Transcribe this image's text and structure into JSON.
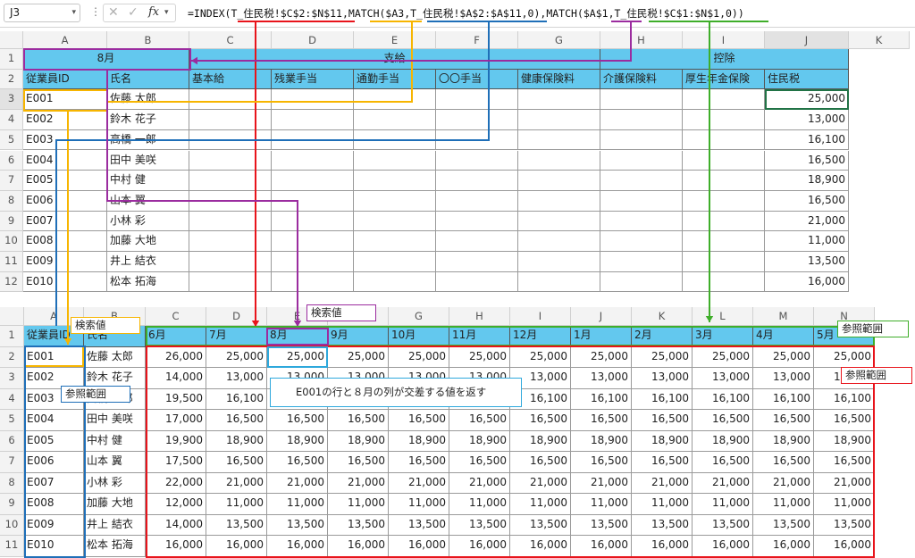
{
  "formula_bar": {
    "cell_ref": "J3",
    "formula": "=INDEX(T_住民税!$C$2:$N$11,MATCH($A3,T_住民税!$A$2:$A$11,0),MATCH($A$1,T_住民税!$C$1:$N$1,0))"
  },
  "top_sheet": {
    "columns": [
      "A",
      "B",
      "C",
      "D",
      "E",
      "F",
      "G",
      "H",
      "I",
      "J",
      "K"
    ],
    "row_numbers": [
      "1",
      "2",
      "3",
      "4",
      "5",
      "6",
      "7",
      "8",
      "9",
      "10",
      "11",
      "12"
    ],
    "month": "8月",
    "group_salary": "支給",
    "group_deduction": "控除",
    "headers": [
      "従業員ID",
      "氏名",
      "基本給",
      "残業手当",
      "通勤手当",
      "〇〇手当",
      "健康保険料",
      "介護保険料",
      "厚生年金保険",
      "住民税"
    ],
    "rows": [
      {
        "id": "E001",
        "name": "佐藤 太郎",
        "tax": "25,000"
      },
      {
        "id": "E002",
        "name": "鈴木 花子",
        "tax": "13,000"
      },
      {
        "id": "E003",
        "name": "高橋 一郎",
        "tax": "16,100"
      },
      {
        "id": "E004",
        "name": "田中 美咲",
        "tax": "16,500"
      },
      {
        "id": "E005",
        "name": "中村 健",
        "tax": "18,900"
      },
      {
        "id": "E006",
        "name": "山本 翼",
        "tax": "16,500"
      },
      {
        "id": "E007",
        "name": "小林 彩",
        "tax": "21,000"
      },
      {
        "id": "E008",
        "name": "加藤 大地",
        "tax": "11,000"
      },
      {
        "id": "E009",
        "name": "井上 結衣",
        "tax": "13,500"
      },
      {
        "id": "E010",
        "name": "松本 拓海",
        "tax": "16,000"
      }
    ]
  },
  "bottom_sheet": {
    "columns": [
      "A",
      "B",
      "C",
      "D",
      "E",
      "F",
      "G",
      "H",
      "I",
      "J",
      "K",
      "L",
      "M",
      "N"
    ],
    "row_numbers": [
      "1",
      "2",
      "3",
      "4",
      "5",
      "6",
      "7",
      "8",
      "9",
      "10",
      "11"
    ],
    "header_id": "従業員ID",
    "header_name": "氏名",
    "months": [
      "6月",
      "7月",
      "8月",
      "9月",
      "10月",
      "11月",
      "12月",
      "1月",
      "2月",
      "3月",
      "4月",
      "5月"
    ],
    "rows": [
      {
        "id": "E001",
        "name": "佐藤 太郎",
        "values": [
          "26,000",
          "25,000",
          "25,000",
          "25,000",
          "25,000",
          "25,000",
          "25,000",
          "25,000",
          "25,000",
          "25,000",
          "25,000",
          "25,000"
        ]
      },
      {
        "id": "E002",
        "name": "鈴木 花子",
        "values": [
          "14,000",
          "13,000",
          "13,000",
          "13,000",
          "13,000",
          "13,000",
          "13,000",
          "13,000",
          "13,000",
          "13,000",
          "13,000",
          "13,000"
        ]
      },
      {
        "id": "E003",
        "name": "高橋 一郎",
        "values": [
          "19,500",
          "16,100",
          "16,100",
          "16,100",
          "16,100",
          "16,100",
          "16,100",
          "16,100",
          "16,100",
          "16,100",
          "16,100",
          "16,100"
        ]
      },
      {
        "id": "E004",
        "name": "田中 美咲",
        "values": [
          "17,000",
          "16,500",
          "16,500",
          "16,500",
          "16,500",
          "16,500",
          "16,500",
          "16,500",
          "16,500",
          "16,500",
          "16,500",
          "16,500"
        ]
      },
      {
        "id": "E005",
        "name": "中村 健",
        "values": [
          "19,900",
          "18,900",
          "18,900",
          "18,900",
          "18,900",
          "18,900",
          "18,900",
          "18,900",
          "18,900",
          "18,900",
          "18,900",
          "18,900"
        ]
      },
      {
        "id": "E006",
        "name": "山本 翼",
        "values": [
          "17,500",
          "16,500",
          "16,500",
          "16,500",
          "16,500",
          "16,500",
          "16,500",
          "16,500",
          "16,500",
          "16,500",
          "16,500",
          "16,500"
        ]
      },
      {
        "id": "E007",
        "name": "小林 彩",
        "values": [
          "22,000",
          "21,000",
          "21,000",
          "21,000",
          "21,000",
          "21,000",
          "21,000",
          "21,000",
          "21,000",
          "21,000",
          "21,000",
          "21,000"
        ]
      },
      {
        "id": "E008",
        "name": "加藤 大地",
        "values": [
          "12,000",
          "11,000",
          "11,000",
          "11,000",
          "11,000",
          "11,000",
          "11,000",
          "11,000",
          "11,000",
          "11,000",
          "11,000",
          "11,000"
        ]
      },
      {
        "id": "E009",
        "name": "井上 結衣",
        "values": [
          "14,000",
          "13,500",
          "13,500",
          "13,500",
          "13,500",
          "13,500",
          "13,500",
          "13,500",
          "13,500",
          "13,500",
          "13,500",
          "13,500"
        ]
      },
      {
        "id": "E010",
        "name": "松本 拓海",
        "values": [
          "16,000",
          "16,000",
          "16,000",
          "16,000",
          "16,000",
          "16,000",
          "16,000",
          "16,000",
          "16,000",
          "16,000",
          "16,000",
          "16,000"
        ]
      }
    ]
  },
  "annotations": {
    "lookup_value_1": "検索値",
    "lookup_value_2": "検索値",
    "ref_range_1": "参照範囲",
    "ref_range_2": "参照範囲",
    "ref_range_3": "参照範囲",
    "explanation": "E001の行と８月の列が交差する値を返す"
  },
  "colors": {
    "header_fill": "#63c8ee",
    "red": "#e8141b",
    "orange": "#f7b500",
    "blue": "#1f6fb8",
    "purple": "#9b2c9f",
    "green": "#3fae2a",
    "cyan": "#2ea8dc"
  }
}
